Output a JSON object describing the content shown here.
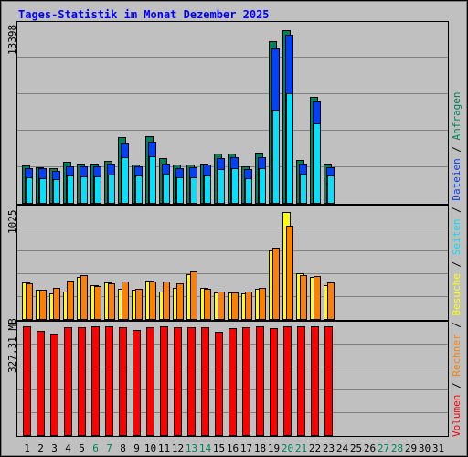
{
  "title": "Tages-Statistik im Monat Dezember 2025",
  "colors": {
    "background": "#c0c0c0",
    "frame": "#000000",
    "title": "#0000ff",
    "anfragen": "#00805c",
    "dateien": "#0040ff",
    "seiten": "#00e0ff",
    "besuche": "#ffff00",
    "rechner": "#ff8000",
    "volumen": "#ff0000",
    "weekend_label": "#00805c",
    "day_label": "#000000"
  },
  "legend": [
    {
      "label": "Volumen",
      "color": "#ff0000"
    },
    {
      "label": "Rechner",
      "color": "#ff8000"
    },
    {
      "label": "Besuche",
      "color": "#ffff00"
    },
    {
      "label": "Seiten",
      "color": "#00e0ff"
    },
    {
      "label": "Dateien",
      "color": "#0040ff"
    },
    {
      "label": "Anfragen",
      "color": "#00805c"
    }
  ],
  "chart_data": [
    {
      "type": "bar",
      "panel": "top",
      "ymax_label": "13398",
      "ylim": [
        0,
        13398
      ],
      "categories": [
        "1",
        "2",
        "3",
        "4",
        "5",
        "6",
        "7",
        "8",
        "9",
        "10",
        "11",
        "12",
        "13",
        "14",
        "15",
        "16",
        "17",
        "18",
        "19",
        "20",
        "21",
        "22",
        "23",
        "24",
        "25",
        "26",
        "27",
        "28",
        "29",
        "30",
        "31"
      ],
      "weekend_days": [
        6,
        7,
        13,
        14,
        20,
        21,
        27,
        28
      ],
      "series": [
        {
          "name": "Anfragen",
          "values": [
            2900,
            2750,
            2700,
            3150,
            3050,
            3050,
            3250,
            5050,
            2950,
            5150,
            3450,
            2950,
            2950,
            3050,
            3800,
            3800,
            2800,
            3850,
            12500,
            13300,
            3300,
            8200,
            3050,
            0,
            0,
            0,
            0,
            0,
            0,
            0,
            0
          ]
        },
        {
          "name": "Dateien",
          "values": [
            2700,
            2650,
            2500,
            2850,
            2800,
            2800,
            3000,
            4600,
            2800,
            4700,
            3050,
            2700,
            2750,
            2950,
            3450,
            3550,
            2600,
            3550,
            11900,
            12950,
            3000,
            7800,
            2750,
            0,
            0,
            0,
            0,
            0,
            0,
            0,
            0
          ]
        },
        {
          "name": "Seiten",
          "values": [
            1950,
            1900,
            1800,
            2100,
            2050,
            2050,
            2200,
            3500,
            2100,
            3600,
            2250,
            1950,
            2000,
            2100,
            2600,
            2700,
            1900,
            2700,
            7200,
            8450,
            2250,
            6100,
            2100,
            0,
            0,
            0,
            0,
            0,
            0,
            0,
            0
          ]
        }
      ]
    },
    {
      "type": "bar",
      "panel": "middle",
      "ymax_label": "1025",
      "ylim": [
        0,
        1025
      ],
      "categories": [
        "1",
        "2",
        "3",
        "4",
        "5",
        "6",
        "7",
        "8",
        "9",
        "10",
        "11",
        "12",
        "13",
        "14",
        "15",
        "16",
        "17",
        "18",
        "19",
        "20",
        "21",
        "22",
        "23",
        "24",
        "25",
        "26",
        "27",
        "28",
        "29",
        "30",
        "31"
      ],
      "series": [
        {
          "name": "Besuche",
          "values": [
            340,
            270,
            240,
            260,
            390,
            320,
            340,
            280,
            270,
            360,
            260,
            290,
            420,
            290,
            250,
            250,
            240,
            280,
            640,
            1000,
            430,
            390,
            320,
            0,
            0,
            0,
            0,
            0,
            0,
            0,
            0
          ]
        },
        {
          "name": "Rechner",
          "values": [
            330,
            270,
            290,
            360,
            410,
            310,
            330,
            350,
            280,
            350,
            350,
            330,
            440,
            280,
            260,
            250,
            260,
            290,
            670,
            870,
            410,
            400,
            340,
            0,
            0,
            0,
            0,
            0,
            0,
            0,
            0
          ]
        }
      ]
    },
    {
      "type": "bar",
      "panel": "bottom",
      "ymax_label": "327.31 MB",
      "ylim": [
        0,
        327.31
      ],
      "categories": [
        "1",
        "2",
        "3",
        "4",
        "5",
        "6",
        "7",
        "8",
        "9",
        "10",
        "11",
        "12",
        "13",
        "14",
        "15",
        "16",
        "17",
        "18",
        "19",
        "20",
        "21",
        "22",
        "23",
        "24",
        "25",
        "26",
        "27",
        "28",
        "29",
        "30",
        "31"
      ],
      "series": [
        {
          "name": "Volumen",
          "values": [
            324,
            311,
            302,
            321,
            323,
            324,
            325,
            323,
            315,
            323,
            325,
            322,
            321,
            323,
            309,
            320,
            322,
            324,
            320,
            325,
            325,
            325,
            325,
            0,
            0,
            0,
            0,
            0,
            0,
            0,
            0
          ]
        }
      ]
    }
  ]
}
